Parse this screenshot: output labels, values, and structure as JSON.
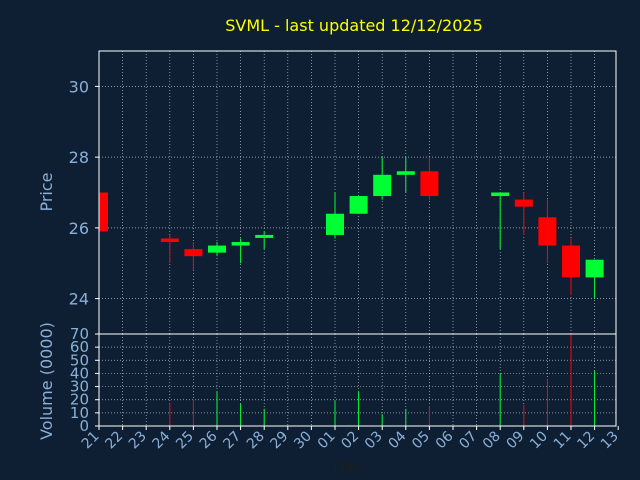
{
  "chart_data": {
    "type": "candlestick",
    "title": "SVML - last updated 12/12/2025",
    "xlabel": "Day",
    "ylabel": "Price",
    "volume_label": "Volume (0000)",
    "x_ticks": [
      "21",
      "22",
      "23",
      "24",
      "25",
      "26",
      "27",
      "28",
      "29",
      "30",
      "01",
      "02",
      "03",
      "04",
      "05",
      "06",
      "07",
      "08",
      "09",
      "10",
      "11",
      "12",
      "13"
    ],
    "price_ylim": [
      23.0,
      31.0
    ],
    "price_yticks": [
      24,
      26,
      28,
      30
    ],
    "volume_ylim": [
      0,
      70
    ],
    "volume_yticks": [
      0,
      10,
      20,
      30,
      40,
      50,
      60,
      70
    ],
    "grid": true,
    "colors": {
      "background": "#0f1f33",
      "title": "#ffff00",
      "axis_text": "#8ab0d8",
      "frame": "#ffffff",
      "grid": "#ffffff",
      "up": "#00ff33",
      "down": "#ff0000"
    },
    "candles": [
      {
        "day": "21",
        "open": 27.0,
        "high": 27.0,
        "low": 25.9,
        "close": 25.9,
        "volume": 0
      },
      {
        "day": "24",
        "open": 25.7,
        "high": 25.8,
        "low": 25.0,
        "close": 25.6,
        "volume": 17
      },
      {
        "day": "25",
        "open": 25.4,
        "high": 25.6,
        "low": 24.8,
        "close": 25.2,
        "volume": 20
      },
      {
        "day": "26",
        "open": 25.3,
        "high": 25.6,
        "low": 25.2,
        "close": 25.5,
        "volume": 26
      },
      {
        "day": "27",
        "open": 25.5,
        "high": 25.7,
        "low": 25.0,
        "close": 25.6,
        "volume": 17
      },
      {
        "day": "28",
        "open": 25.8,
        "high": 25.9,
        "low": 25.4,
        "close": 25.8,
        "volume": 13
      },
      {
        "day": "01",
        "open": 25.8,
        "high": 27.0,
        "low": 25.7,
        "close": 26.4,
        "volume": 19
      },
      {
        "day": "02",
        "open": 26.4,
        "high": 26.9,
        "low": 26.4,
        "close": 26.9,
        "volume": 26
      },
      {
        "day": "03",
        "open": 26.9,
        "high": 28.0,
        "low": 26.8,
        "close": 27.5,
        "volume": 9
      },
      {
        "day": "04",
        "open": 27.5,
        "high": 28.0,
        "low": 27.0,
        "close": 27.6,
        "volume": 13
      },
      {
        "day": "05",
        "open": 27.6,
        "high": 28.0,
        "low": 26.8,
        "close": 26.9,
        "volume": 15
      },
      {
        "day": "08",
        "open": 26.9,
        "high": 27.0,
        "low": 25.4,
        "close": 27.0,
        "volume": 40
      },
      {
        "day": "09",
        "open": 26.8,
        "high": 27.0,
        "low": 25.8,
        "close": 26.6,
        "volume": 16
      },
      {
        "day": "10",
        "open": 26.3,
        "high": 26.8,
        "low": 25.0,
        "close": 25.5,
        "volume": 36
      },
      {
        "day": "11",
        "open": 25.5,
        "high": 25.7,
        "low": 24.1,
        "close": 24.6,
        "volume": 70
      },
      {
        "day": "12",
        "open": 24.6,
        "high": 25.1,
        "low": 24.0,
        "close": 25.1,
        "volume": 42
      }
    ]
  }
}
